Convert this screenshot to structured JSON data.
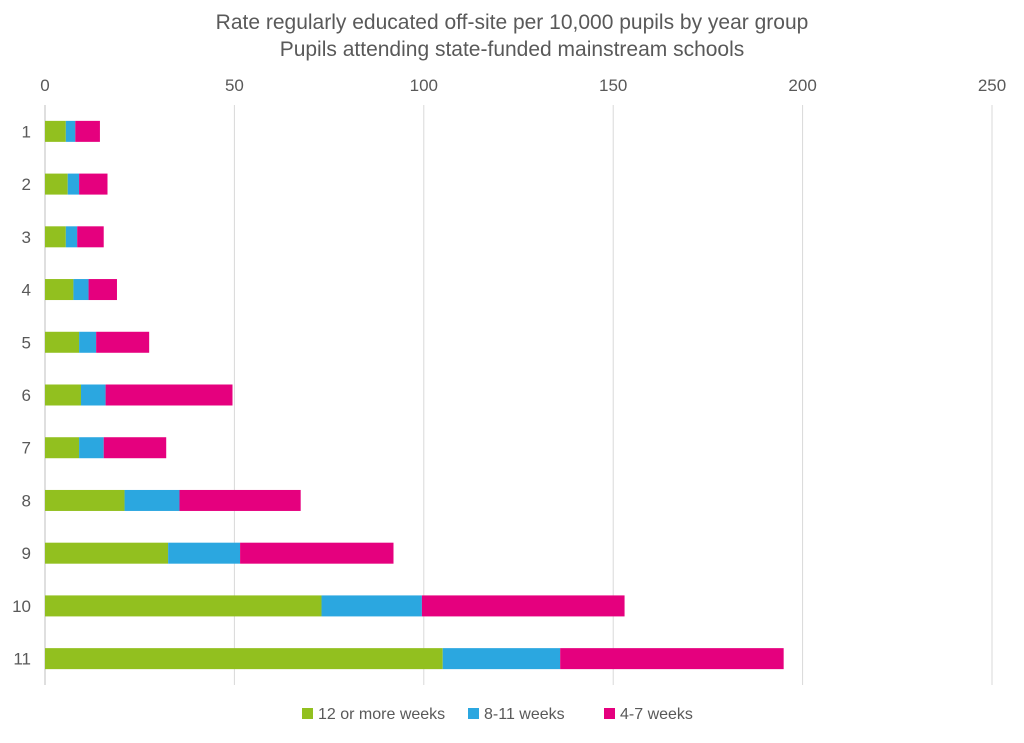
{
  "chart_data": {
    "type": "bar",
    "orientation": "horizontal",
    "stacked": true,
    "title": "Rate regularly educated off-site per 10,000 pupils by year group",
    "subtitle": "Pupils attending state-funded mainstream schools",
    "xlabel": "",
    "ylabel": "",
    "xlim": [
      0,
      250
    ],
    "xticks": [
      "0",
      "50",
      "100",
      "150",
      "200",
      "250"
    ],
    "grid": true,
    "legend_position": "bottom",
    "categories": [
      "1",
      "2",
      "3",
      "4",
      "5",
      "6",
      "7",
      "8",
      "9",
      "10",
      "11"
    ],
    "series": [
      {
        "name": "12 or more weeks",
        "color": "#92c01f",
        "values": [
          5.5,
          6,
          5.5,
          7.5,
          9,
          9.5,
          9,
          21,
          32.5,
          73,
          105
        ]
      },
      {
        "name": "8-11 weeks",
        "color": "#2ba7e0",
        "values": [
          2.5,
          3,
          3,
          4,
          4.5,
          6.5,
          6.5,
          14.5,
          19,
          26.5,
          31
        ]
      },
      {
        "name": "4-7 weeks",
        "color": "#e5007e",
        "values": [
          6.5,
          7.5,
          7,
          7.5,
          14,
          33.5,
          16.5,
          32,
          40.5,
          53.5,
          59
        ]
      }
    ]
  }
}
